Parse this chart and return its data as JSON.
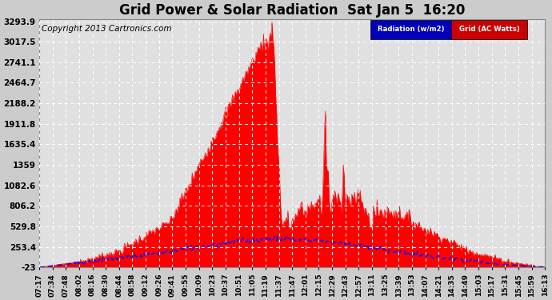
{
  "title": "Grid Power & Solar Radiation  Sat Jan 5  16:20",
  "copyright": "Copyright 2013 Cartronics.com",
  "yticks": [
    -23.0,
    253.4,
    529.8,
    806.2,
    1082.6,
    1359.0,
    1635.4,
    1911.8,
    2188.2,
    2464.7,
    2741.1,
    3017.5,
    3293.9
  ],
  "ymin": -23.0,
  "ymax": 3293.9,
  "bg_color": "#cccccc",
  "plot_bg": "#e0e0e0",
  "grid_color": "#ffffff",
  "legend_radiation_label": "Radiation (w/m2)",
  "legend_grid_label": "Grid (AC Watts)",
  "radiation_color": "#0000ff",
  "grid_fill_color": "#ff0000",
  "title_fontsize": 12,
  "copyright_fontsize": 7.5,
  "xtick_fontsize": 6.5,
  "ytick_fontsize": 7.5,
  "xtick_labels": [
    "07:17",
    "07:34",
    "07:48",
    "08:02",
    "08:16",
    "08:30",
    "08:44",
    "08:58",
    "09:12",
    "09:26",
    "09:41",
    "09:55",
    "10:09",
    "10:23",
    "10:37",
    "10:51",
    "11:05",
    "11:19",
    "11:37",
    "11:47",
    "12:01",
    "12:15",
    "12:29",
    "12:43",
    "12:57",
    "13:11",
    "13:25",
    "13:39",
    "13:53",
    "14:07",
    "14:21",
    "14:35",
    "14:49",
    "15:03",
    "15:17",
    "15:31",
    "15:45",
    "15:59",
    "16:13"
  ]
}
